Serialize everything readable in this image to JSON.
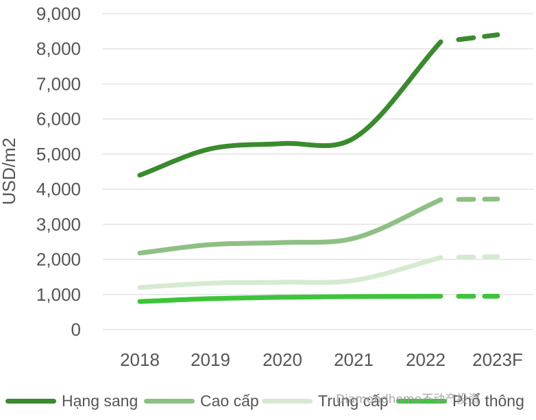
{
  "chart_data": {
    "type": "line",
    "categories": [
      "2018",
      "2019",
      "2020",
      "2021",
      "2022",
      "2023F"
    ],
    "ylabel": "USD/m2",
    "xlabel": "",
    "ylim": [
      0,
      9000
    ],
    "yticks": [
      "0",
      "1,000",
      "2,000",
      "3,000",
      "4,000",
      "5,000",
      "6,000",
      "7,000",
      "8,000",
      "9,000"
    ],
    "grid": true,
    "legend_position": "bottom",
    "forecast_style": "dashed",
    "series": [
      {
        "name": "Hạng sang",
        "color": "#3a8a2e",
        "values": [
          4400,
          5150,
          5300,
          5450,
          8200,
          8400
        ]
      },
      {
        "name": "Cao cấp",
        "color": "#8ebf84",
        "values": [
          2180,
          2420,
          2480,
          2600,
          3700,
          3720
        ]
      },
      {
        "name": "Trung cấp",
        "color": "#d6ead2",
        "values": [
          1200,
          1320,
          1350,
          1400,
          2050,
          2080
        ]
      },
      {
        "name": "Phổ thông",
        "color": "#3ec43a",
        "values": [
          800,
          880,
          920,
          940,
          950,
          950
        ]
      }
    ]
  },
  "watermark": "Diamondhome不动产投资"
}
